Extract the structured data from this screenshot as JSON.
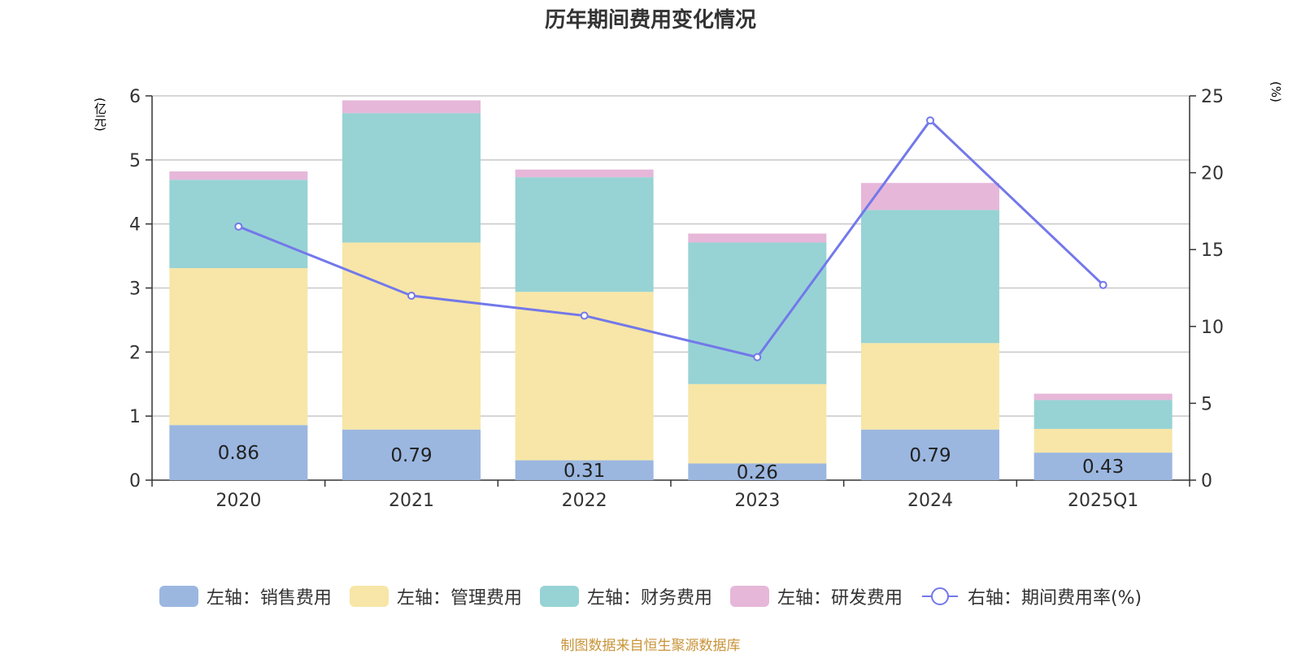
{
  "chart_data": {
    "type": "bar+line",
    "title": "历年期间费用变化情况",
    "categories": [
      "2020",
      "2021",
      "2022",
      "2023",
      "2024",
      "2025Q1"
    ],
    "left_axis": {
      "label": "(亿元)",
      "ylim": [
        0,
        6
      ],
      "ticks": [
        "0",
        "1",
        "2",
        "3",
        "4",
        "5",
        "6"
      ]
    },
    "right_axis": {
      "label": "(%)",
      "ylim": [
        0,
        25
      ],
      "ticks": [
        "0",
        "5",
        "10",
        "15",
        "20",
        "25"
      ]
    },
    "series": [
      {
        "name": "左轴：销售费用",
        "type": "bar",
        "axis": "left",
        "color": "#9bb7e0",
        "values": [
          0.86,
          0.79,
          0.31,
          0.26,
          0.79,
          0.43
        ],
        "labels": [
          "0.86",
          "0.79",
          "0.31",
          "0.26",
          "0.79",
          "0.43"
        ]
      },
      {
        "name": "左轴：管理费用",
        "type": "bar",
        "axis": "left",
        "color": "#f7e6a7",
        "values": [
          2.45,
          2.92,
          2.63,
          1.24,
          1.35,
          0.37
        ]
      },
      {
        "name": "左轴：财务费用",
        "type": "bar",
        "axis": "left",
        "color": "#97d3d4",
        "values": [
          1.38,
          2.02,
          1.79,
          2.21,
          2.08,
          0.45
        ]
      },
      {
        "name": "左轴：研发费用",
        "type": "bar",
        "axis": "left",
        "color": "#e6b7d9",
        "values": [
          0.13,
          0.2,
          0.12,
          0.14,
          0.42,
          0.1
        ]
      },
      {
        "name": "右轴：期间费用率(%)",
        "type": "line",
        "axis": "right",
        "color": "#7378ea",
        "values": [
          16.5,
          12.0,
          10.7,
          8.0,
          23.4,
          12.7
        ]
      }
    ]
  },
  "footer": "制图数据来自恒生聚源数据库"
}
